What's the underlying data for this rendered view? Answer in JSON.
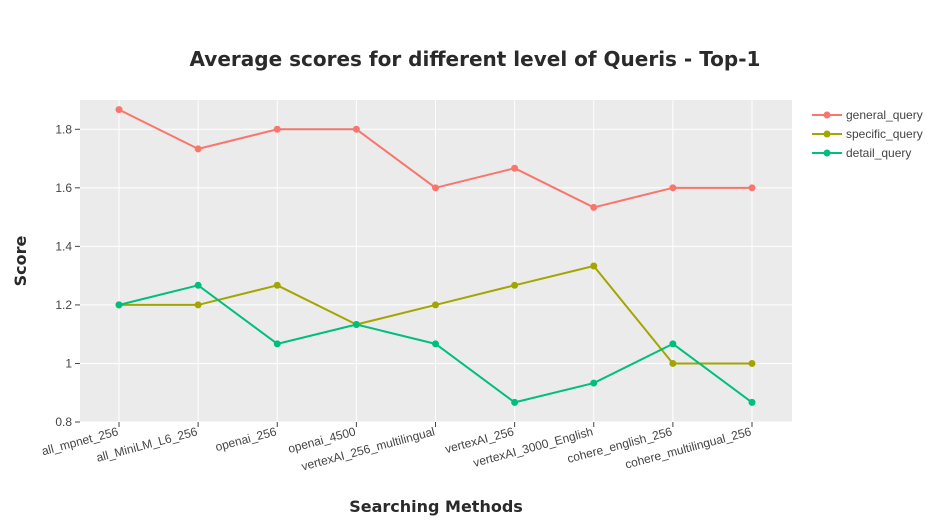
{
  "chart_data": {
    "type": "line",
    "title": "Average scores for different level of Queris - Top-1",
    "xlabel": "Searching Methods",
    "ylabel": "Score",
    "categories": [
      "all_mpnet_256",
      "all_MiniLM_L6_256",
      "openai_256",
      "openai_4500",
      "vertexAI_256_multilingual",
      "vertexAI_256",
      "vertexAI_3000_English",
      "cohere_english_256",
      "cohere_multilingual_256"
    ],
    "ylim": [
      0.8,
      1.9
    ],
    "yticks": [
      0.8,
      1,
      1.2,
      1.4,
      1.6,
      1.8
    ],
    "ytick_labels": [
      "0.8",
      "1",
      "1.2",
      "1.4",
      "1.6",
      "1.8"
    ],
    "grid": true,
    "legend_position": "top-right",
    "series": [
      {
        "name": "general_query",
        "color": "#F8766D",
        "values": [
          1.867,
          1.733,
          1.8,
          1.8,
          1.6,
          1.667,
          1.533,
          1.6,
          1.6
        ]
      },
      {
        "name": "specific_query",
        "color": "#A3A500",
        "values": [
          1.2,
          1.2,
          1.267,
          1.133,
          1.2,
          1.267,
          1.333,
          1.0,
          1.0
        ]
      },
      {
        "name": "detail_query",
        "color": "#00BF7D",
        "values": [
          1.2,
          1.267,
          1.067,
          1.133,
          1.067,
          0.867,
          0.933,
          1.067,
          0.867
        ]
      }
    ]
  }
}
